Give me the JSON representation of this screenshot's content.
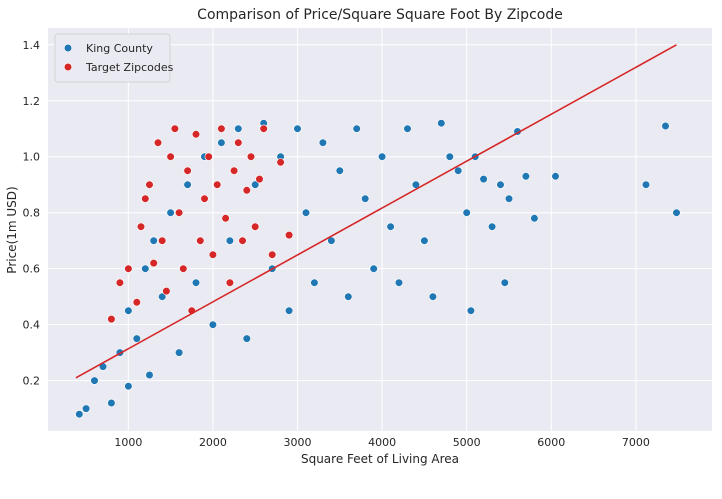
{
  "chart_data": {
    "type": "scatter",
    "title": "Comparison of Price/Square Square Foot By Zipcode",
    "xlabel": "Square Feet of Living Area",
    "ylabel": "Price(1m USD)",
    "xlim": [
      50,
      7900
    ],
    "ylim": [
      0.02,
      1.46
    ],
    "xticks": [
      1000,
      2000,
      3000,
      4000,
      5000,
      6000,
      7000
    ],
    "yticks": [
      0.2,
      0.4,
      0.6,
      0.8,
      1.0,
      1.2,
      1.4
    ],
    "ytick_labels": [
      "0.2",
      "0.4",
      "0.6",
      "0.8",
      "1.0",
      "1.2",
      "1.4"
    ],
    "grid": true,
    "legend_position": "top-left",
    "background": "#EAEAF2",
    "series": [
      {
        "name": "King County",
        "color": "#1F77B4",
        "points": [
          [
            420,
            0.08
          ],
          [
            500,
            0.1
          ],
          [
            600,
            0.2
          ],
          [
            700,
            0.25
          ],
          [
            800,
            0.12
          ],
          [
            900,
            0.3
          ],
          [
            1000,
            0.18
          ],
          [
            1000,
            0.45
          ],
          [
            1100,
            0.35
          ],
          [
            1200,
            0.6
          ],
          [
            1250,
            0.22
          ],
          [
            1300,
            0.7
          ],
          [
            1400,
            0.5
          ],
          [
            1500,
            0.8
          ],
          [
            1600,
            0.3
          ],
          [
            1700,
            0.9
          ],
          [
            1800,
            0.55
          ],
          [
            1900,
            1.0
          ],
          [
            2000,
            0.4
          ],
          [
            2100,
            1.05
          ],
          [
            2200,
            0.7
          ],
          [
            2300,
            1.1
          ],
          [
            2400,
            0.35
          ],
          [
            2500,
            0.9
          ],
          [
            2600,
            1.12
          ],
          [
            2700,
            0.6
          ],
          [
            2800,
            1.0
          ],
          [
            2900,
            0.45
          ],
          [
            3000,
            1.1
          ],
          [
            3100,
            0.8
          ],
          [
            3200,
            0.55
          ],
          [
            3300,
            1.05
          ],
          [
            3400,
            0.7
          ],
          [
            3500,
            0.95
          ],
          [
            3600,
            0.5
          ],
          [
            3700,
            1.1
          ],
          [
            3800,
            0.85
          ],
          [
            3900,
            0.6
          ],
          [
            4000,
            1.0
          ],
          [
            4100,
            0.75
          ],
          [
            4200,
            0.55
          ],
          [
            4300,
            1.1
          ],
          [
            4400,
            0.9
          ],
          [
            4500,
            0.7
          ],
          [
            4600,
            0.5
          ],
          [
            4700,
            1.12
          ],
          [
            4800,
            1.0
          ],
          [
            4900,
            0.95
          ],
          [
            5000,
            0.8
          ],
          [
            5050,
            0.45
          ],
          [
            5100,
            1.0
          ],
          [
            5200,
            0.92
          ],
          [
            5300,
            0.75
          ],
          [
            5400,
            0.9
          ],
          [
            5450,
            0.55
          ],
          [
            5500,
            0.85
          ],
          [
            5600,
            1.09
          ],
          [
            5700,
            0.93
          ],
          [
            5800,
            0.78
          ],
          [
            6050,
            0.93
          ],
          [
            7120,
            0.9
          ],
          [
            7350,
            1.11
          ],
          [
            7480,
            0.8
          ]
        ]
      },
      {
        "name": "Target Zipcodes",
        "color": "#D62728",
        "points": [
          [
            800,
            0.42
          ],
          [
            900,
            0.55
          ],
          [
            1000,
            0.6
          ],
          [
            1100,
            0.48
          ],
          [
            1150,
            0.75
          ],
          [
            1200,
            0.85
          ],
          [
            1250,
            0.9
          ],
          [
            1300,
            0.62
          ],
          [
            1350,
            1.05
          ],
          [
            1400,
            0.7
          ],
          [
            1450,
            0.52
          ],
          [
            1500,
            1.0
          ],
          [
            1550,
            1.1
          ],
          [
            1600,
            0.8
          ],
          [
            1650,
            0.6
          ],
          [
            1700,
            0.95
          ],
          [
            1750,
            0.45
          ],
          [
            1800,
            1.08
          ],
          [
            1850,
            0.7
          ],
          [
            1900,
            0.85
          ],
          [
            1950,
            1.0
          ],
          [
            2000,
            0.65
          ],
          [
            2050,
            0.9
          ],
          [
            2100,
            1.1
          ],
          [
            2150,
            0.78
          ],
          [
            2200,
            0.55
          ],
          [
            2250,
            0.95
          ],
          [
            2300,
            1.05
          ],
          [
            2350,
            0.7
          ],
          [
            2400,
            0.88
          ],
          [
            2450,
            1.0
          ],
          [
            2500,
            0.75
          ],
          [
            2550,
            0.92
          ],
          [
            2600,
            1.1
          ],
          [
            2700,
            0.65
          ],
          [
            2800,
            0.98
          ],
          [
            2900,
            0.72
          ]
        ]
      }
    ],
    "regression_line": {
      "color": "#D62728",
      "points": [
        [
          380,
          0.21
        ],
        [
          7480,
          1.4
        ]
      ]
    }
  }
}
